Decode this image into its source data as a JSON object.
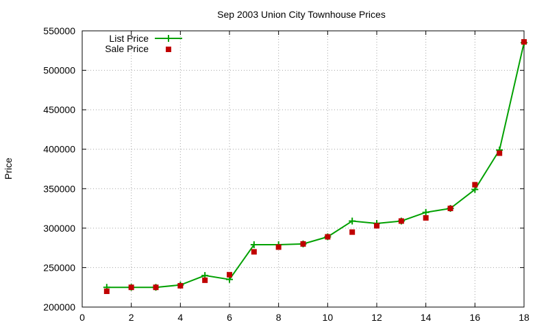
{
  "chart_data": {
    "type": "line",
    "title": "Sep 2003 Union City Townhouse Prices",
    "xlabel": "",
    "ylabel": "Price",
    "xlim": [
      0,
      18
    ],
    "ylim": [
      200000,
      550000
    ],
    "xticks": [
      0,
      2,
      4,
      6,
      8,
      10,
      12,
      14,
      16,
      18
    ],
    "yticks": [
      200000,
      250000,
      300000,
      350000,
      400000,
      450000,
      500000,
      550000
    ],
    "grid": true,
    "legend_position": "top-left",
    "series": [
      {
        "name": "List Price",
        "style": "line-with-plus-markers",
        "color": "#00a000",
        "x": [
          1,
          2,
          3,
          4,
          5,
          6,
          7,
          8,
          9,
          10,
          11,
          12,
          13,
          14,
          15,
          16,
          17,
          18
        ],
        "values": [
          225000,
          225000,
          225000,
          228000,
          240000,
          235000,
          279000,
          279000,
          280000,
          289000,
          309000,
          306000,
          309000,
          320000,
          325000,
          349000,
          399000,
          535000
        ]
      },
      {
        "name": "Sale Price",
        "style": "square-markers",
        "color": "#c00000",
        "x": [
          1,
          2,
          3,
          4,
          5,
          6,
          7,
          8,
          9,
          10,
          11,
          12,
          13,
          14,
          15,
          16,
          17,
          18
        ],
        "values": [
          220000,
          225000,
          225000,
          227000,
          234000,
          241000,
          270000,
          276000,
          280000,
          289000,
          295000,
          303000,
          309000,
          313000,
          325000,
          355000,
          395000,
          536000
        ]
      }
    ]
  }
}
